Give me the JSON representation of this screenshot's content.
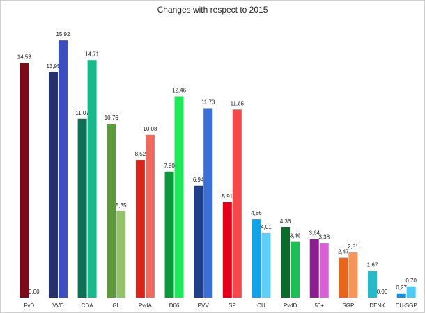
{
  "chart_data": {
    "type": "bar",
    "title": "Changes with respect to 2015",
    "categories": [
      "FvD",
      "VVD",
      "CDA",
      "GL",
      "PvdA",
      "D66",
      "PVV",
      "SP",
      "CU",
      "PvdD",
      "50+",
      "SGP",
      "DENK",
      "CU-SGP"
    ],
    "series": [
      {
        "colors": [
          "#7b0a1a",
          "#26306b",
          "#0f7057",
          "#5e9a3c",
          "#d9261c",
          "#0a9a3c",
          "#1f3f8a",
          "#e3001b",
          "#13a3e8",
          "#0b6b2a",
          "#8b1f8f",
          "#e8651a",
          "#28b8c8",
          "#1a8fd8"
        ],
        "values": [
          14.53,
          13.95,
          11.07,
          10.76,
          8.52,
          7.8,
          6.94,
          5.91,
          4.86,
          4.36,
          3.64,
          2.47,
          1.67,
          0.27
        ],
        "value_labels": [
          "14,53",
          "13,95",
          "11,07",
          "10,76",
          "8,52",
          "7,80",
          "6,94",
          "5,91",
          "4,86",
          "4,36",
          "3,64",
          "2,47",
          "1,67",
          "0,27"
        ]
      },
      {
        "colors": [
          "#a01c2c",
          "#3d4fc0",
          "#18b98a",
          "#93c46a",
          "#ef6a5f",
          "#1ee85a",
          "#3b6fd6",
          "#f5484a",
          "#5fd0f5",
          "#1bc055",
          "#d861d6",
          "#f5955a",
          "#4ad8e0",
          "#4ecbf5"
        ],
        "values": [
          0.0,
          15.92,
          14.71,
          5.35,
          10.08,
          12.46,
          11.73,
          11.65,
          4.01,
          3.46,
          3.38,
          2.81,
          0.0,
          0.7
        ],
        "value_labels": [
          "0,00",
          "15,92",
          "14,71",
          "5,35",
          "10,08",
          "12,46",
          "11,73",
          "11,65",
          "4,01",
          "3,46",
          "3,38",
          "2,81",
          "0,00",
          "0,70"
        ]
      }
    ],
    "ylim": [
      0,
      17
    ]
  }
}
